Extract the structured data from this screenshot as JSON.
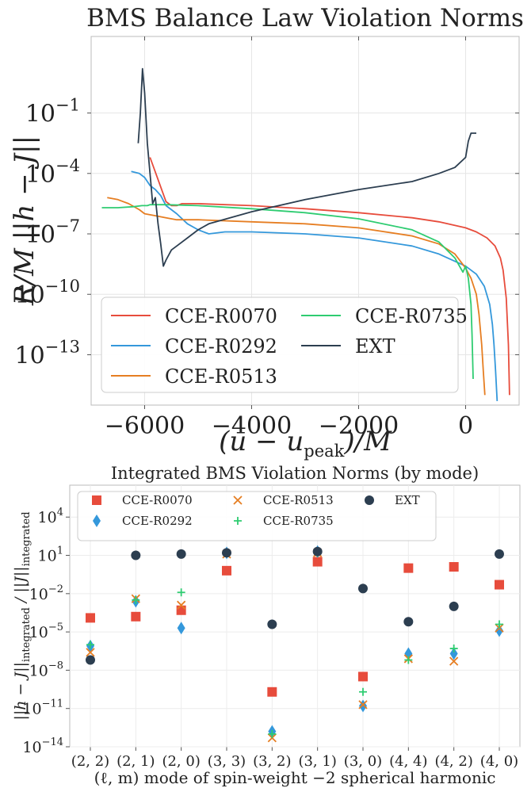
{
  "chart_data": [
    {
      "type": "line",
      "title": "BMS Balance Law Violation Norms",
      "xlabel": "(u − u_peak)/M",
      "ylabel": "R/M ||h − J||",
      "yscale": "log",
      "xlim": [
        -7000,
        1000
      ],
      "ylim_log10": [
        -15.5,
        2.8
      ],
      "x_ticks": [
        -6000,
        -4000,
        -2000,
        0
      ],
      "x_tick_labels": [
        "−6000",
        "−4000",
        "−2000",
        "0"
      ],
      "y_ticks_log10": [
        -1,
        -4,
        -7,
        -10,
        -13
      ],
      "y_tick_labels": [
        "10",
        "10",
        "10",
        "10",
        "10"
      ],
      "y_tick_exps": [
        "−1",
        "−4",
        "−7",
        "−10",
        "−13"
      ],
      "grid": true,
      "legend_position": "lower-left",
      "legend": [
        "CCE-R0070",
        "CCE-R0292",
        "CCE-R0513",
        "CCE-R0735",
        "EXT"
      ],
      "series": [
        {
          "name": "CCE-R0070",
          "color": "#e74c3c",
          "x": [
            -5900,
            -5750,
            -5600,
            -5500,
            -5400,
            -5300,
            -5000,
            -4000,
            -3000,
            -2000,
            -1000,
            -500,
            0,
            200,
            400,
            550,
            650,
            700,
            760,
            800,
            820
          ],
          "y": [
            -3.2,
            -4.3,
            -5.4,
            -5.6,
            -5.6,
            -5.5,
            -5.5,
            -5.6,
            -5.75,
            -5.95,
            -6.2,
            -6.4,
            -6.7,
            -6.9,
            -7.2,
            -7.6,
            -8.2,
            -8.8,
            -10.2,
            -12.5,
            -15.0
          ]
        },
        {
          "name": "CCE-R0292",
          "color": "#3498db",
          "x": [
            -6250,
            -6100,
            -6000,
            -5900,
            -5800,
            -5700,
            -5600,
            -5400,
            -5200,
            -5000,
            -4800,
            -4500,
            -4000,
            -3000,
            -2000,
            -1000,
            -500,
            0,
            200,
            350,
            450,
            500,
            530,
            560,
            590
          ],
          "y": [
            -3.9,
            -4.0,
            -4.2,
            -4.6,
            -4.8,
            -5.1,
            -5.6,
            -6.0,
            -6.5,
            -6.8,
            -7.0,
            -6.9,
            -6.9,
            -7.0,
            -7.2,
            -7.6,
            -8.0,
            -8.6,
            -9.0,
            -9.6,
            -10.5,
            -11.5,
            -12.5,
            -13.8,
            -15.3
          ]
        },
        {
          "name": "CCE-R0513",
          "color": "#e67e22",
          "x": [
            -6700,
            -6500,
            -6300,
            -6100,
            -6000,
            -5800,
            -5600,
            -5400,
            -5000,
            -4000,
            -3000,
            -2000,
            -1000,
            -500,
            -200,
            0,
            100,
            200,
            250,
            300,
            330,
            360
          ],
          "y": [
            -5.2,
            -5.3,
            -5.5,
            -5.8,
            -6.0,
            -6.1,
            -6.2,
            -6.3,
            -6.3,
            -6.4,
            -6.5,
            -6.7,
            -7.1,
            -7.5,
            -8.0,
            -8.7,
            -9.2,
            -10.0,
            -11.0,
            -12.5,
            -13.8,
            -15.0
          ]
        },
        {
          "name": "CCE-R0735",
          "color": "#2ecc71",
          "x": [
            -6800,
            -6500,
            -6200,
            -6050,
            -5950,
            -5900,
            -5800,
            -5600,
            -5000,
            -4000,
            -3000,
            -2000,
            -1000,
            -500,
            -200,
            -50,
            0,
            50,
            100,
            120,
            140
          ],
          "y": [
            -5.7,
            -5.7,
            -5.65,
            -5.6,
            -5.6,
            -5.55,
            -5.55,
            -5.55,
            -5.6,
            -5.75,
            -5.95,
            -6.25,
            -6.8,
            -7.4,
            -8.2,
            -8.9,
            -8.6,
            -9.2,
            -10.5,
            -12.0,
            -14.2
          ]
        },
        {
          "name": "EXT",
          "color": "#2c3e50",
          "x": [
            -6120,
            -6080,
            -6040,
            -6000,
            -5950,
            -5900,
            -5850,
            -5800,
            -5750,
            -5700,
            -5650,
            -5600,
            -5500,
            -5400,
            -5200,
            -5000,
            -4800,
            -4000,
            -3000,
            -2000,
            -1000,
            -500,
            -200,
            0,
            50,
            100,
            150,
            200
          ],
          "y": [
            -2.5,
            -1.0,
            1.2,
            0.0,
            -2.5,
            -4.0,
            -5.5,
            -5.2,
            -6.5,
            -7.5,
            -8.6,
            -8.3,
            -7.8,
            -7.6,
            -7.2,
            -6.8,
            -6.5,
            -5.9,
            -5.3,
            -4.8,
            -4.4,
            -4.0,
            -3.7,
            -3.2,
            -2.4,
            -2.0,
            -2.0,
            -2.0
          ]
        }
      ]
    },
    {
      "type": "scatter",
      "title": "Integrated BMS Violation Norms (by mode)",
      "xlabel": "(ℓ, m) mode of spin-weight −2 spherical harmonic",
      "ylabel": "||h − J||integrated / ||J||integrated",
      "yscale": "log",
      "ylim_log10": [
        -14,
        6.5
      ],
      "y_ticks_log10": [
        4,
        1,
        -2,
        -5,
        -8,
        -11,
        -14
      ],
      "y_tick_labels": [
        "10",
        "10",
        "10",
        "10",
        "10",
        "10",
        "10"
      ],
      "y_tick_exps": [
        "4",
        "1",
        "−2",
        "−5",
        "−8",
        "−11",
        "−14"
      ],
      "grid": true,
      "legend_position": "top",
      "categories": [
        "(2, 2)",
        "(2, 1)",
        "(2, 0)",
        "(3, 3)",
        "(3, 2)",
        "(3, 1)",
        "(3, 0)",
        "(4, 4)",
        "(4, 2)",
        "(4, 0)"
      ],
      "series": [
        {
          "name": "CCE-R0070",
          "marker": "square",
          "color": "#e74c3c",
          "values_log10": [
            -3.9,
            -3.8,
            -3.3,
            -0.2,
            -9.7,
            0.5,
            -8.5,
            0.0,
            0.1,
            -1.3
          ]
        },
        {
          "name": "CCE-R0292",
          "marker": "diamond",
          "color": "#3498db",
          "values_log10": [
            -6.1,
            -2.6,
            -4.7,
            1.2,
            -12.8,
            1.3,
            -10.8,
            -6.7,
            -6.7,
            -4.9
          ]
        },
        {
          "name": "CCE-R0513",
          "marker": "x",
          "color": "#e67e22",
          "values_log10": [
            -6.6,
            -2.4,
            -2.9,
            1.1,
            -13.3,
            1.2,
            -10.7,
            -7.1,
            -7.3,
            -4.7
          ]
        },
        {
          "name": "CCE-R0735",
          "marker": "plus",
          "color": "#2ecc71",
          "values_log10": [
            -6.0,
            -2.5,
            -1.9,
            1.2,
            -13.0,
            1.2,
            -9.7,
            -7.2,
            -6.3,
            -4.4
          ]
        },
        {
          "name": "EXT",
          "marker": "circle",
          "color": "#2c3e50",
          "values_log10": [
            -7.2,
            1.0,
            1.1,
            1.2,
            -4.4,
            1.3,
            -1.6,
            -4.2,
            -3.0,
            1.1
          ]
        }
      ]
    }
  ]
}
